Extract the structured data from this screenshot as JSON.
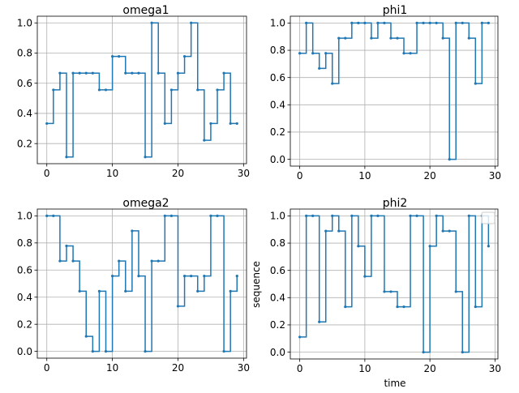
{
  "figure": {
    "background": "#ffffff",
    "series_color": "#1f77b4",
    "grid": true
  },
  "chart_data": [
    {
      "type": "line",
      "drawstyle": "steps-post",
      "markers": true,
      "title": "omega1",
      "xlabel": "",
      "ylabel": "",
      "xlim": [
        -1.45,
        30.45
      ],
      "ylim": [
        0.0667,
        1.0444
      ],
      "xticks": [
        0,
        10,
        20,
        30
      ],
      "yticks": [
        0.2,
        0.4,
        0.6,
        0.8,
        1.0
      ],
      "ytick_labels": [
        "0.2",
        "0.4",
        "0.6",
        "0.8",
        "1.0"
      ],
      "legend": false,
      "series": [
        {
          "x": [
            0,
            1,
            2,
            3,
            4,
            5,
            6,
            7,
            8,
            9,
            10,
            11,
            12,
            13,
            14,
            15,
            16,
            17,
            18,
            19,
            20,
            21,
            22,
            23,
            24,
            25,
            26,
            27,
            28,
            29
          ],
          "y": [
            0.333,
            0.556,
            0.667,
            0.111,
            0.667,
            0.667,
            0.667,
            0.667,
            0.556,
            0.556,
            0.778,
            0.778,
            0.667,
            0.667,
            0.667,
            0.111,
            1.0,
            0.667,
            0.333,
            0.556,
            0.667,
            0.778,
            1.0,
            0.556,
            0.222,
            0.333,
            0.556,
            0.667,
            0.333,
            0.333
          ]
        }
      ]
    },
    {
      "type": "line",
      "drawstyle": "steps-post",
      "markers": true,
      "title": "phi1",
      "xlabel": "",
      "ylabel": "",
      "xlim": [
        -1.45,
        30.45
      ],
      "ylim": [
        -0.05,
        1.05
      ],
      "xticks": [
        0,
        10,
        20,
        30
      ],
      "yticks": [
        0.0,
        0.2,
        0.4,
        0.6,
        0.8,
        1.0
      ],
      "ytick_labels": [
        "0.0",
        "0.2",
        "0.4",
        "0.6",
        "0.8",
        "1.0"
      ],
      "legend": false,
      "series": [
        {
          "x": [
            0,
            1,
            2,
            3,
            4,
            5,
            6,
            7,
            8,
            9,
            10,
            11,
            12,
            13,
            14,
            15,
            16,
            17,
            18,
            19,
            20,
            21,
            22,
            23,
            24,
            25,
            26,
            27,
            28,
            29
          ],
          "y": [
            0.778,
            1.0,
            0.778,
            0.667,
            0.778,
            0.556,
            0.889,
            0.889,
            1.0,
            1.0,
            1.0,
            0.889,
            1.0,
            1.0,
            0.889,
            0.889,
            0.778,
            0.778,
            1.0,
            1.0,
            1.0,
            1.0,
            0.889,
            0.0,
            1.0,
            1.0,
            0.889,
            0.556,
            1.0,
            1.0
          ]
        }
      ]
    },
    {
      "type": "line",
      "drawstyle": "steps-post",
      "markers": true,
      "title": "omega2",
      "xlabel": "",
      "ylabel": "",
      "xlim": [
        -1.45,
        30.45
      ],
      "ylim": [
        -0.05,
        1.05
      ],
      "xticks": [
        0,
        10,
        20,
        30
      ],
      "yticks": [
        0.0,
        0.2,
        0.4,
        0.6,
        0.8,
        1.0
      ],
      "ytick_labels": [
        "0.0",
        "0.2",
        "0.4",
        "0.6",
        "0.8",
        "1.0"
      ],
      "legend": false,
      "series": [
        {
          "x": [
            0,
            1,
            2,
            3,
            4,
            5,
            6,
            7,
            8,
            9,
            10,
            11,
            12,
            13,
            14,
            15,
            16,
            17,
            18,
            19,
            20,
            21,
            22,
            23,
            24,
            25,
            26,
            27,
            28,
            29
          ],
          "y": [
            1.0,
            1.0,
            0.667,
            0.778,
            0.667,
            0.444,
            0.111,
            0.0,
            0.444,
            0.0,
            0.556,
            0.667,
            0.444,
            0.889,
            0.556,
            0.0,
            0.667,
            0.667,
            1.0,
            1.0,
            0.333,
            0.556,
            0.556,
            0.444,
            0.556,
            1.0,
            1.0,
            0.0,
            0.444,
            0.556
          ]
        }
      ]
    },
    {
      "type": "line",
      "drawstyle": "steps-post",
      "markers": true,
      "title": "phi2",
      "xlabel": "time",
      "ylabel": "sequence",
      "xlim": [
        -1.45,
        30.45
      ],
      "ylim": [
        -0.05,
        1.05
      ],
      "xticks": [
        0,
        10,
        20,
        30
      ],
      "yticks": [
        0.0,
        0.2,
        0.4,
        0.6,
        0.8,
        1.0
      ],
      "ytick_labels": [
        "0.0",
        "0.2",
        "0.4",
        "0.6",
        "0.8",
        "1.0"
      ],
      "legend": "upper right",
      "series": [
        {
          "x": [
            0,
            1,
            2,
            3,
            4,
            5,
            6,
            7,
            8,
            9,
            10,
            11,
            12,
            13,
            14,
            15,
            16,
            17,
            18,
            19,
            20,
            21,
            22,
            23,
            24,
            25,
            26,
            27,
            28,
            29
          ],
          "y": [
            0.111,
            1.0,
            1.0,
            0.222,
            0.889,
            1.0,
            0.889,
            0.333,
            1.0,
            0.778,
            0.556,
            1.0,
            1.0,
            0.444,
            0.444,
            0.333,
            0.333,
            1.0,
            1.0,
            0.0,
            0.778,
            1.0,
            0.889,
            0.889,
            0.444,
            0.0,
            1.0,
            0.333,
            1.0,
            0.778
          ]
        }
      ]
    }
  ]
}
